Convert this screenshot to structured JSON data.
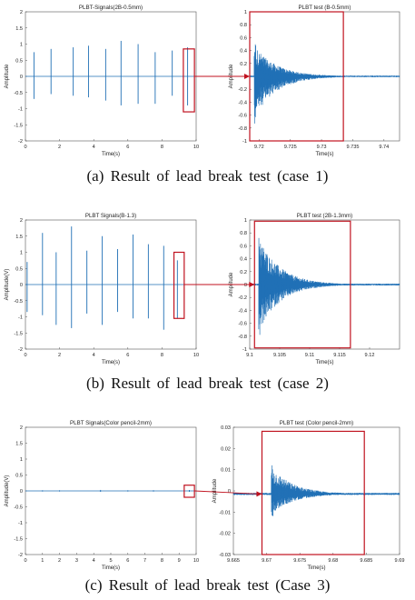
{
  "figure": {
    "captions": [
      "(a)  Result  of  lead  break  test  (case  1)",
      "(b)  Result  of  lead  break  test  (case  2)",
      "(c)  Result  of  lead  break  test  (Case  3)"
    ]
  },
  "colors": {
    "signal": "#1f6fb5",
    "highlight": "#c0121f",
    "arrow": "#c0121f",
    "axis": "#333333"
  },
  "chart_data": [
    {
      "type": "line",
      "panel": "a-left",
      "title": "PLBT-Signals(2B-0.5mm)",
      "xlabel": "Time(s)",
      "ylabel": "Amplitude",
      "xlim": [
        0,
        10
      ],
      "ylim": [
        -2,
        2
      ],
      "xticks": [
        "0",
        "2",
        "4",
        "6",
        "8",
        "10"
      ],
      "yticks": [
        "2",
        "1.5",
        "1",
        "0.5",
        "0",
        "-0.5",
        "-1",
        "-1.5",
        "-2"
      ],
      "bursts": [
        {
          "t": 0.5,
          "max": 0.75,
          "min": -0.7
        },
        {
          "t": 1.5,
          "max": 0.85,
          "min": -0.55
        },
        {
          "t": 2.8,
          "max": 0.9,
          "min": -0.6
        },
        {
          "t": 3.7,
          "max": 0.95,
          "min": -0.65
        },
        {
          "t": 4.7,
          "max": 0.85,
          "min": -0.75
        },
        {
          "t": 5.6,
          "max": 1.1,
          "min": -0.9
        },
        {
          "t": 6.6,
          "max": 1.0,
          "min": -0.85
        },
        {
          "t": 7.6,
          "max": 0.75,
          "min": -0.85
        },
        {
          "t": 8.6,
          "max": 0.8,
          "min": -0.6
        },
        {
          "t": 9.5,
          "max": 0.9,
          "min": -0.9
        }
      ],
      "highlight": {
        "t0": 9.25,
        "t1": 9.9,
        "y0": -1.1,
        "y1": 0.85
      }
    },
    {
      "type": "line",
      "panel": "a-right",
      "title": "PLBT test (B-0.5mm)",
      "xlabel": "Time(s)",
      "ylabel": "Amplitude",
      "xlim": [
        9.7185,
        9.7425
      ],
      "ylim": [
        -1.05,
        1.05
      ],
      "xticks": [
        "9.72",
        "9.725",
        "9.73",
        "9.735",
        "9.74"
      ],
      "yticks": [
        "1",
        "0.8",
        "0.6",
        "0.4",
        "0.2",
        "0",
        "-0.2",
        "-0.4",
        "-0.6",
        "-0.8",
        "-1"
      ],
      "burst": {
        "t_start": 9.7192,
        "peak_max": 0.6,
        "peak_min": -0.8,
        "decay_to": 9.734,
        "noise": 0.012
      },
      "highlight": {
        "t0": 9.7185,
        "t1": 9.7335,
        "y0": -1.05,
        "y1": 1.05
      }
    },
    {
      "type": "line",
      "panel": "b-left",
      "title": "PLBT Signals(B-1.3)",
      "xlabel": "Time(s)",
      "ylabel": "Amplitude(V)",
      "xlim": [
        0,
        10
      ],
      "ylim": [
        -2,
        2
      ],
      "xticks": [
        "0",
        "2",
        "4",
        "6",
        "8",
        "10"
      ],
      "yticks": [
        "2",
        "1.5",
        "1",
        "0.5",
        "0",
        "-0.5",
        "-1",
        "-1.5",
        "-2"
      ],
      "bursts": [
        {
          "t": 0.1,
          "max": 0.7,
          "min": -0.85
        },
        {
          "t": 1.0,
          "max": 1.6,
          "min": -0.95
        },
        {
          "t": 1.8,
          "max": 1.0,
          "min": -1.25
        },
        {
          "t": 2.7,
          "max": 1.8,
          "min": -1.35
        },
        {
          "t": 3.6,
          "max": 1.05,
          "min": -0.9
        },
        {
          "t": 4.5,
          "max": 1.5,
          "min": -1.25
        },
        {
          "t": 5.4,
          "max": 1.1,
          "min": -0.85
        },
        {
          "t": 6.3,
          "max": 1.55,
          "min": -1.05
        },
        {
          "t": 7.2,
          "max": 1.25,
          "min": -1.05
        },
        {
          "t": 8.1,
          "max": 1.2,
          "min": -1.4
        },
        {
          "t": 8.9,
          "max": 0.75,
          "min": -1.05
        }
      ],
      "highlight": {
        "t0": 8.7,
        "t1": 9.3,
        "y0": -1.05,
        "y1": 1.0
      }
    },
    {
      "type": "line",
      "panel": "b-right",
      "title": "PLBT test (2B-1.3mm)",
      "xlabel": "Time(s)",
      "ylabel": "Amplitude",
      "xlim": [
        9.1,
        9.125
      ],
      "ylim": [
        -1.1,
        1.1
      ],
      "xticks": [
        "9.1",
        "9.105",
        "9.11",
        "9.115",
        "9.12"
      ],
      "yticks": [
        "1",
        "0.8",
        "0.6",
        "0.4",
        "0.2",
        "0",
        "-0.2",
        "-0.4",
        "-0.6",
        "-0.8",
        "-1"
      ],
      "burst": {
        "t_start": 9.1015,
        "peak_max": 0.95,
        "peak_min": -0.95,
        "decay_to": 9.1165,
        "noise": 0.015
      },
      "highlight": {
        "t0": 9.1008,
        "t1": 9.1168,
        "y0": -1.08,
        "y1": 1.08
      }
    },
    {
      "type": "line",
      "panel": "c-left",
      "title": "PLBT Signals(Color pencil-2mm)",
      "xlabel": "Time(s)",
      "ylabel": "Amplitude(V)",
      "xlim": [
        0,
        10
      ],
      "ylim": [
        -2,
        2
      ],
      "xticks": [
        "0",
        "1",
        "2",
        "3",
        "4",
        "5",
        "6",
        "7",
        "8",
        "9",
        "10"
      ],
      "yticks": [
        "2",
        "1.5",
        "1",
        "0.5",
        "0",
        "-0.5",
        "-1",
        "-1.5",
        "-2"
      ],
      "bursts": [
        {
          "t": 1.0,
          "max": 0.02,
          "min": -0.02
        },
        {
          "t": 2.0,
          "max": 0.02,
          "min": -0.02
        },
        {
          "t": 4.4,
          "max": 0.03,
          "min": -0.03
        },
        {
          "t": 6.0,
          "max": 0.02,
          "min": -0.02
        },
        {
          "t": 7.5,
          "max": 0.02,
          "min": -0.02
        },
        {
          "t": 9.6,
          "max": 0.03,
          "min": -0.03
        }
      ],
      "highlight": {
        "t0": 9.3,
        "t1": 9.9,
        "y0": -0.2,
        "y1": 0.18
      }
    },
    {
      "type": "line",
      "panel": "c-right",
      "title": "PLBT test (Color pencil-2mm)",
      "xlabel": "Time(s)",
      "ylabel": "Amplitude",
      "xlim": [
        9.665,
        9.69
      ],
      "ylim": [
        -0.03,
        0.033
      ],
      "xticks": [
        "9.665",
        "9.67",
        "9.675",
        "9.68",
        "9.685",
        "9.69"
      ],
      "yticks": [
        "0.03",
        "0.02",
        "0.01",
        "0",
        "-0.01",
        "-0.02",
        "-0.03"
      ],
      "burst": {
        "t_start": 9.6707,
        "peak_max": 0.016,
        "peak_min": -0.012,
        "decay_to": 9.6845,
        "noise": 0.0005
      },
      "highlight": {
        "t0": 9.6693,
        "t1": 9.6847,
        "y0": -0.03,
        "y1": 0.031
      }
    }
  ]
}
